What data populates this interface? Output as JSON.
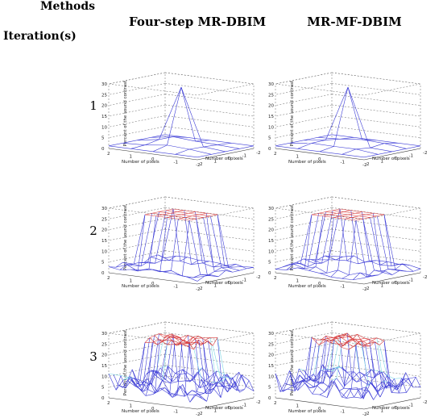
{
  "header": {
    "methods_label": "Methods",
    "iterations_label": "Iteration(s)"
  },
  "columns": [
    {
      "label": "Four-step MR-DBIM"
    },
    {
      "label": "MR-MF-DBIM"
    }
  ],
  "rows": [
    {
      "iteration": "1"
    },
    {
      "iteration": "2"
    },
    {
      "iteration": "3"
    }
  ],
  "plot_text": {
    "zlabel": "Percent of the sound contrast",
    "xlabel": "Number of pixels",
    "ylabel": "Number of pixels",
    "zticks": [
      "30",
      "25",
      "20",
      "15",
      "10",
      "5",
      "0"
    ],
    "xticks": [
      "2",
      "1",
      "0",
      "-1",
      "-2"
    ],
    "yticks": [
      "-2",
      "-1",
      "0",
      "1",
      "2"
    ]
  },
  "colors": {
    "mesh_blue": "#3b3bd6",
    "mesh_red": "#d83a3a",
    "mesh_cyan": "#7fd8e6",
    "axis_dash": "#666666"
  }
}
